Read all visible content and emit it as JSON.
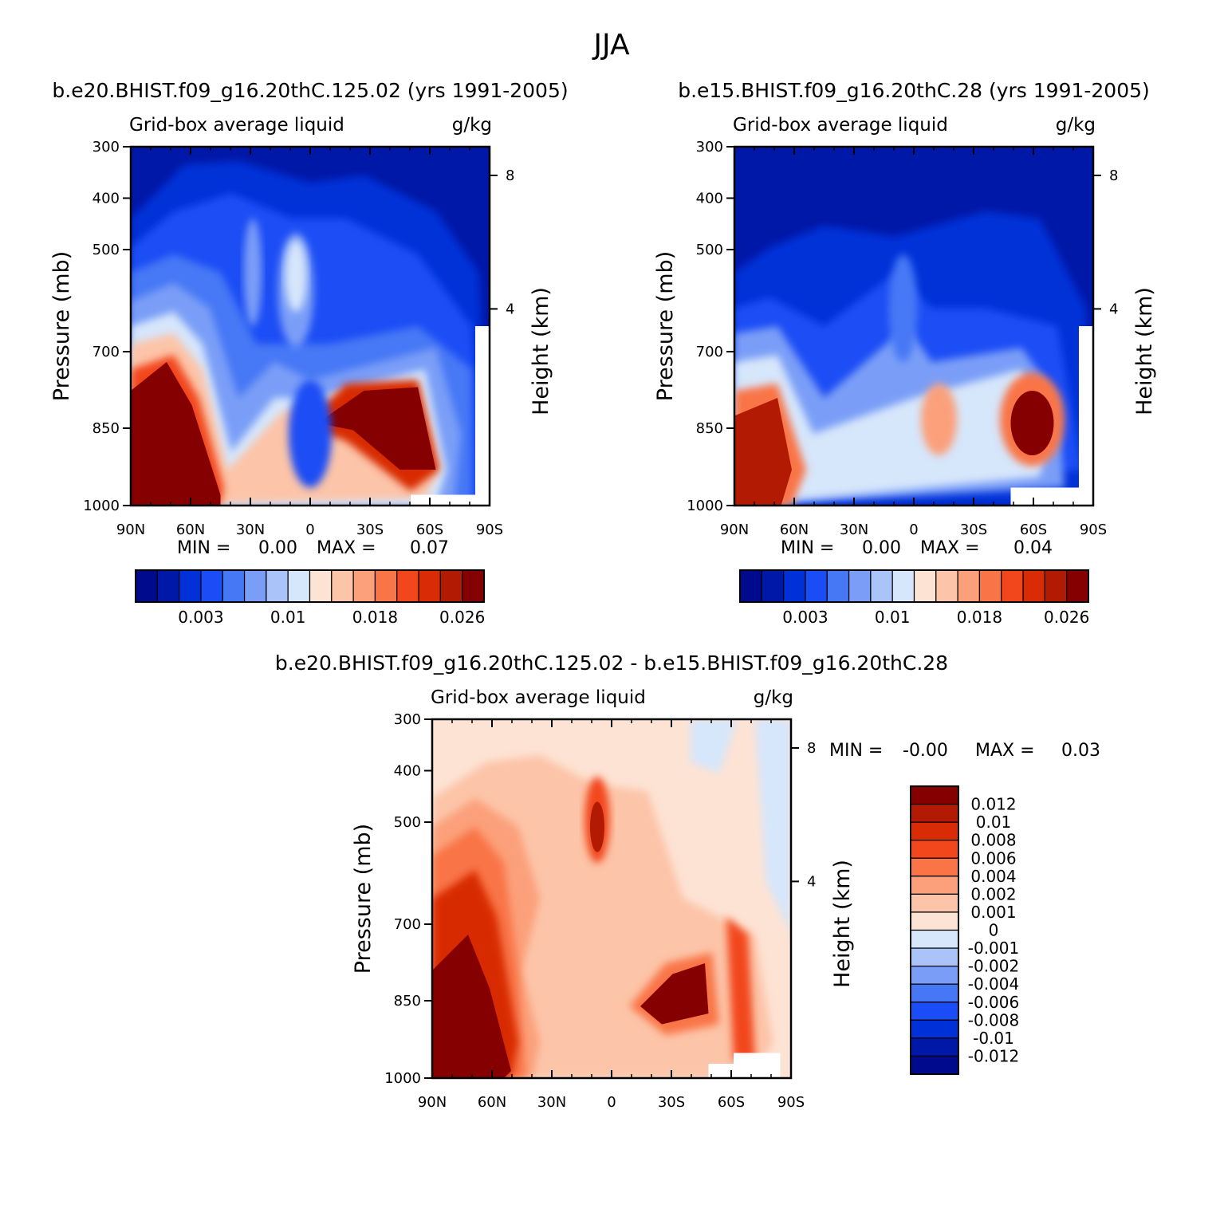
{
  "page_title": "JJA",
  "chart_data": [
    {
      "type": "heatmap",
      "panel": "case",
      "title": "b.e20.BHIST.f09_g16.20thC.125.02 (yrs 1991-2005)",
      "variable": "Grid-box average liquid",
      "units": "g/kg",
      "ylabel": "Pressure (mb)",
      "ylabel_right": "Height (km)",
      "x_ticks": [
        "90N",
        "60N",
        "30N",
        "0",
        "30S",
        "60S",
        "90S"
      ],
      "y_ticks": [
        "300",
        "400",
        "500",
        "700",
        "850",
        "1000"
      ],
      "y_right_ticks": [
        "8",
        "4"
      ],
      "min_label": "MIN =",
      "min_value": "0.00",
      "max_label": "MAX =",
      "max_value": "0.07",
      "colorbar_labels": [
        "0.003",
        "0.01",
        "0.018",
        "0.026"
      ],
      "colorbar_orientation": "horizontal"
    },
    {
      "type": "heatmap",
      "panel": "control",
      "title": "b.e15.BHIST.f09_g16.20thC.28 (yrs 1991-2005)",
      "variable": "Grid-box average liquid",
      "units": "g/kg",
      "ylabel": "Pressure (mb)",
      "ylabel_right": "Height (km)",
      "x_ticks": [
        "90N",
        "60N",
        "30N",
        "0",
        "30S",
        "60S",
        "90S"
      ],
      "y_ticks": [
        "300",
        "400",
        "500",
        "700",
        "850",
        "1000"
      ],
      "y_right_ticks": [
        "8",
        "4"
      ],
      "min_label": "MIN =",
      "min_value": "0.00",
      "max_label": "MAX =",
      "max_value": "0.04",
      "colorbar_labels": [
        "0.003",
        "0.01",
        "0.018",
        "0.026"
      ],
      "colorbar_orientation": "horizontal"
    },
    {
      "type": "heatmap",
      "panel": "difference",
      "title": "b.e20.BHIST.f09_g16.20thC.125.02 - b.e15.BHIST.f09_g16.20thC.28",
      "variable": "Grid-box average liquid",
      "units": "g/kg",
      "ylabel": "Pressure (mb)",
      "ylabel_right": "Height (km)",
      "x_ticks": [
        "90N",
        "60N",
        "30N",
        "0",
        "30S",
        "60S",
        "90S"
      ],
      "y_ticks": [
        "300",
        "400",
        "500",
        "700",
        "850",
        "1000"
      ],
      "y_right_ticks": [
        "8",
        "4"
      ],
      "min_label": "MIN =",
      "min_value": "-0.00",
      "max_label": "MAX =",
      "max_value": "0.03",
      "colorbar_labels": [
        "0.012",
        "0.01",
        "0.008",
        "0.006",
        "0.004",
        "0.002",
        "0.001",
        "0",
        "-0.001",
        "-0.002",
        "-0.004",
        "-0.006",
        "-0.008",
        "-0.01",
        "-0.012"
      ],
      "colorbar_orientation": "vertical"
    }
  ],
  "colors": {
    "seq_palette": [
      "#000a8c",
      "#0018a8",
      "#0030d8",
      "#1a4df5",
      "#4678f5",
      "#7a9ef7",
      "#aac4fa",
      "#d6e6fb",
      "#fde3d4",
      "#fcc4a8",
      "#fba07a",
      "#f97447",
      "#f2471d",
      "#d82b06",
      "#b21a04",
      "#850000"
    ],
    "diff_palette": [
      "#850000",
      "#b21a04",
      "#d82b06",
      "#f2471d",
      "#f97447",
      "#fba07a",
      "#fcc4a8",
      "#fde3d4",
      "#d6e6fb",
      "#aac4fa",
      "#7a9ef7",
      "#4678f5",
      "#1a4df5",
      "#0030d8",
      "#0018a8",
      "#000a8c"
    ]
  }
}
